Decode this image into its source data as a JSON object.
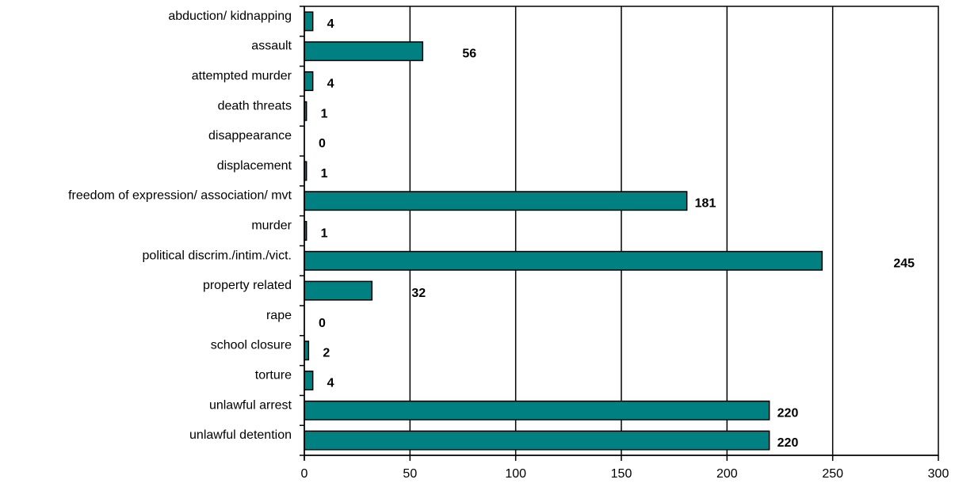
{
  "chart_data": {
    "type": "bar",
    "orientation": "horizontal",
    "categories": [
      "abduction/ kidnapping",
      "assault",
      "attempted murder",
      "death threats",
      "disappearance",
      "displacement",
      "freedom of expression/ association/ mvt",
      "murder",
      "political discrim./intim./vict.",
      "property related",
      "rape",
      "school closure",
      "torture",
      "unlawful arrest",
      "unlawful detention"
    ],
    "values": [
      4,
      56,
      4,
      1,
      0,
      1,
      181,
      1,
      245,
      32,
      0,
      2,
      4,
      220,
      220
    ],
    "xlim": [
      0,
      300
    ],
    "xticks": [
      0,
      50,
      100,
      150,
      200,
      250,
      300
    ],
    "grid": "vertical",
    "legend": "none",
    "colors": {
      "bar_fill": "#008080",
      "bar_stroke": "#000000",
      "grid": "#000000"
    }
  }
}
